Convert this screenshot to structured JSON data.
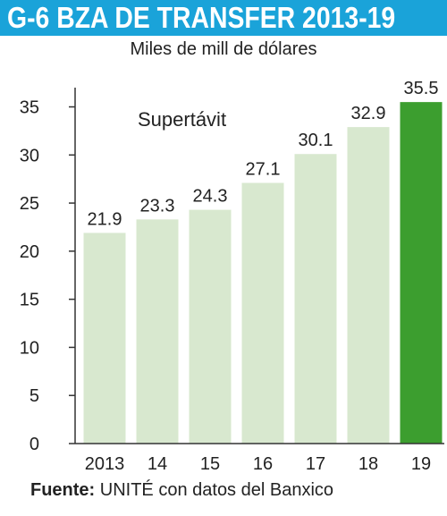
{
  "chart_data": {
    "type": "bar",
    "title": "G-6  BZA DE TRANSFER 2013-19",
    "subtitle": "Miles de mill de dólares",
    "annotation": "Supertávit",
    "categories": [
      "2013",
      "14",
      "15",
      "16",
      "17",
      "18",
      "19"
    ],
    "values": [
      21.9,
      23.3,
      24.3,
      27.1,
      30.1,
      32.9,
      35.5
    ],
    "value_labels": [
      "21.9",
      "23.3",
      "24.3",
      "27.1",
      "30.1",
      "32.9",
      "35.5"
    ],
    "yticks": [
      0,
      5,
      10,
      15,
      20,
      25,
      30,
      35
    ],
    "ylim": [
      0,
      37
    ],
    "grid": false,
    "colors": {
      "bar": "#d8e8cf",
      "highlight": "#3c9e2f",
      "banner": "#1aa3d9"
    },
    "highlight_index": 6
  },
  "source": {
    "label": "Fuente:",
    "text": " UNITÉ con datos del Banxico"
  }
}
